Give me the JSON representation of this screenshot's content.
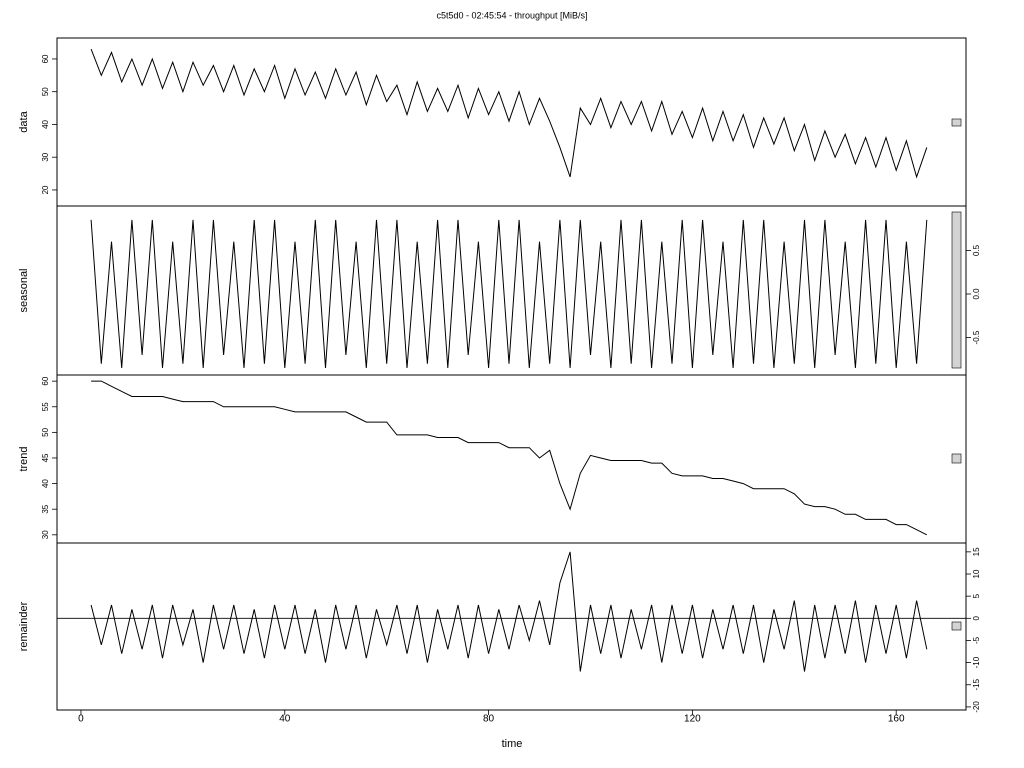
{
  "chart_data": [
    {
      "type": "line",
      "title": "c5t5d0 - 02:45:54 - throughput [MiB/s]",
      "ylabel": "data",
      "y_axis_side": "left",
      "color": "#000000",
      "xlim": [
        -4.7,
        173.7
      ],
      "ylim": [
        15.1,
        66.4
      ],
      "yticks": [
        20,
        30,
        40,
        50,
        60
      ],
      "x": [
        2,
        4,
        6,
        8,
        10,
        12,
        14,
        16,
        18,
        20,
        22,
        24,
        26,
        28,
        30,
        32,
        34,
        36,
        38,
        40,
        42,
        44,
        46,
        48,
        50,
        52,
        54,
        56,
        58,
        60,
        62,
        64,
        66,
        68,
        70,
        72,
        74,
        76,
        78,
        80,
        82,
        84,
        86,
        88,
        90,
        92,
        94,
        96,
        98,
        100,
        102,
        104,
        106,
        108,
        110,
        112,
        114,
        116,
        118,
        120,
        122,
        124,
        126,
        128,
        130,
        132,
        134,
        136,
        138,
        140,
        142,
        144,
        146,
        148,
        150,
        152,
        154,
        156,
        158,
        160,
        162,
        164,
        166
      ],
      "values": [
        63,
        55,
        62,
        53,
        60,
        52,
        60,
        51,
        59,
        50,
        59,
        52,
        58,
        50,
        58,
        49,
        57,
        50,
        58,
        48,
        57,
        49,
        56,
        48,
        57,
        49,
        56,
        46,
        55,
        47,
        52,
        43,
        53,
        44,
        51,
        44,
        52,
        42,
        51,
        43,
        50,
        41,
        50,
        40,
        48,
        41,
        33,
        24,
        45,
        40,
        48,
        39,
        47,
        40,
        47,
        38,
        47,
        37,
        44,
        36,
        45,
        35,
        44,
        35,
        43,
        33,
        42,
        34,
        42,
        32,
        40,
        29,
        38,
        30,
        37,
        28,
        36,
        27,
        36,
        26,
        35,
        24,
        33
      ]
    },
    {
      "type": "line",
      "ylabel": "seasonal",
      "y_axis_side": "right",
      "color": "#000000",
      "xlim": [
        -4.7,
        173.7
      ],
      "ylim": [
        -0.93,
        1.01
      ],
      "yticks": [
        -0.5,
        {
          "value": 0,
          "label": "0.0"
        },
        0.5
      ],
      "x": [
        2,
        4,
        6,
        8,
        10,
        12,
        14,
        16,
        18,
        20,
        22,
        24,
        26,
        28,
        30,
        32,
        34,
        36,
        38,
        40,
        42,
        44,
        46,
        48,
        50,
        52,
        54,
        56,
        58,
        60,
        62,
        64,
        66,
        68,
        70,
        72,
        74,
        76,
        78,
        80,
        82,
        84,
        86,
        88,
        90,
        92,
        94,
        96,
        98,
        100,
        102,
        104,
        106,
        108,
        110,
        112,
        114,
        116,
        118,
        120,
        122,
        124,
        126,
        128,
        130,
        132,
        134,
        136,
        138,
        140,
        142,
        144,
        146,
        148,
        150,
        152,
        154,
        156,
        158,
        160,
        162,
        164,
        166
      ],
      "values": [
        0.85,
        -0.8,
        0.6,
        -0.85,
        0.85,
        -0.7,
        0.85,
        -0.85,
        0.6,
        -0.8,
        0.85,
        -0.85,
        0.85,
        -0.7,
        0.6,
        -0.85,
        0.85,
        -0.8,
        0.85,
        -0.85,
        0.6,
        -0.8,
        0.85,
        -0.85,
        0.85,
        -0.7,
        0.6,
        -0.85,
        0.85,
        -0.8,
        0.85,
        -0.85,
        0.6,
        -0.8,
        0.85,
        -0.85,
        0.85,
        -0.7,
        0.6,
        -0.85,
        0.85,
        -0.8,
        0.85,
        -0.85,
        0.6,
        -0.8,
        0.85,
        -0.85,
        0.85,
        -0.7,
        0.6,
        -0.85,
        0.85,
        -0.8,
        0.85,
        -0.85,
        0.6,
        -0.8,
        0.85,
        -0.85,
        0.85,
        -0.7,
        0.6,
        -0.85,
        0.85,
        -0.8,
        0.85,
        -0.85,
        0.6,
        -0.8,
        0.85,
        -0.85,
        0.85,
        -0.7,
        0.6,
        -0.85,
        0.85,
        -0.8,
        0.85,
        -0.85,
        0.6,
        -0.8,
        0.85
      ]
    },
    {
      "type": "line",
      "ylabel": "trend",
      "y_axis_side": "left",
      "color": "#000000",
      "xlim": [
        -4.7,
        173.7
      ],
      "ylim": [
        28.4,
        61.2
      ],
      "yticks": [
        30,
        35,
        40,
        45,
        50,
        55,
        60
      ],
      "x": [
        2,
        4,
        6,
        8,
        10,
        12,
        14,
        16,
        18,
        20,
        22,
        24,
        26,
        28,
        30,
        32,
        34,
        36,
        38,
        40,
        42,
        44,
        46,
        48,
        50,
        52,
        54,
        56,
        58,
        60,
        62,
        64,
        66,
        68,
        70,
        72,
        74,
        76,
        78,
        80,
        82,
        84,
        86,
        88,
        90,
        92,
        94,
        96,
        98,
        100,
        102,
        104,
        106,
        108,
        110,
        112,
        114,
        116,
        118,
        120,
        122,
        124,
        126,
        128,
        130,
        132,
        134,
        136,
        138,
        140,
        142,
        144,
        146,
        148,
        150,
        152,
        154,
        156,
        158,
        160,
        162,
        164,
        166
      ],
      "values": [
        60,
        60,
        59,
        58,
        57,
        57,
        57,
        57,
        56.5,
        56,
        56,
        56,
        56,
        55,
        55,
        55,
        55,
        55,
        55,
        54.5,
        54,
        54,
        54,
        54,
        54,
        54,
        53,
        52,
        52,
        52,
        49.5,
        49.5,
        49.5,
        49.5,
        49,
        49,
        49,
        48,
        48,
        48,
        48,
        47,
        47,
        47,
        45,
        46.5,
        40,
        35,
        42,
        45.5,
        45,
        44.5,
        44.5,
        44.5,
        44.5,
        44,
        44,
        42,
        41.5,
        41.5,
        41.5,
        41,
        41,
        40.5,
        40,
        39,
        39,
        39,
        39,
        38,
        36,
        35.5,
        35.5,
        35,
        34,
        34,
        33,
        33,
        33,
        32,
        32,
        31,
        30
      ]
    },
    {
      "type": "line",
      "ylabel": "remainder",
      "y_axis_side": "right",
      "color": "#000000",
      "xlabel": "time",
      "xlim": [
        -4.7,
        173.7
      ],
      "ylim": [
        -20.7,
        17
      ],
      "yticks": [
        -20,
        -15,
        -10,
        -5,
        0,
        5,
        10,
        15
      ],
      "xticks": [
        0,
        40,
        80,
        120,
        160
      ],
      "x": [
        2,
        4,
        6,
        8,
        10,
        12,
        14,
        16,
        18,
        20,
        22,
        24,
        26,
        28,
        30,
        32,
        34,
        36,
        38,
        40,
        42,
        44,
        46,
        48,
        50,
        52,
        54,
        56,
        58,
        60,
        62,
        64,
        66,
        68,
        70,
        72,
        74,
        76,
        78,
        80,
        82,
        84,
        86,
        88,
        90,
        92,
        94,
        96,
        98,
        100,
        102,
        104,
        106,
        108,
        110,
        112,
        114,
        116,
        118,
        120,
        122,
        124,
        126,
        128,
        130,
        132,
        134,
        136,
        138,
        140,
        142,
        144,
        146,
        148,
        150,
        152,
        154,
        156,
        158,
        160,
        162,
        164,
        166
      ],
      "values": [
        3,
        -6,
        3,
        -8,
        2,
        -7,
        3,
        -9,
        3,
        -6,
        2,
        -10,
        3,
        -7,
        3,
        -8,
        2,
        -9,
        3,
        -7,
        3,
        -8,
        2,
        -10,
        3,
        -7,
        3,
        -9,
        2,
        -6,
        3,
        -8,
        3,
        -10,
        2,
        -7,
        3,
        -9,
        3,
        -8,
        2,
        -7,
        3,
        -5,
        4,
        -6,
        8,
        15,
        -12,
        3,
        -8,
        3,
        -9,
        2,
        -7,
        3,
        -10,
        3,
        -8,
        3,
        -9,
        2,
        -7,
        3,
        -8,
        3,
        -10,
        2,
        -7,
        4,
        -12,
        3,
        -9,
        3,
        -8,
        4,
        -10,
        3,
        -8,
        3,
        -9,
        4,
        -7
      ]
    }
  ]
}
